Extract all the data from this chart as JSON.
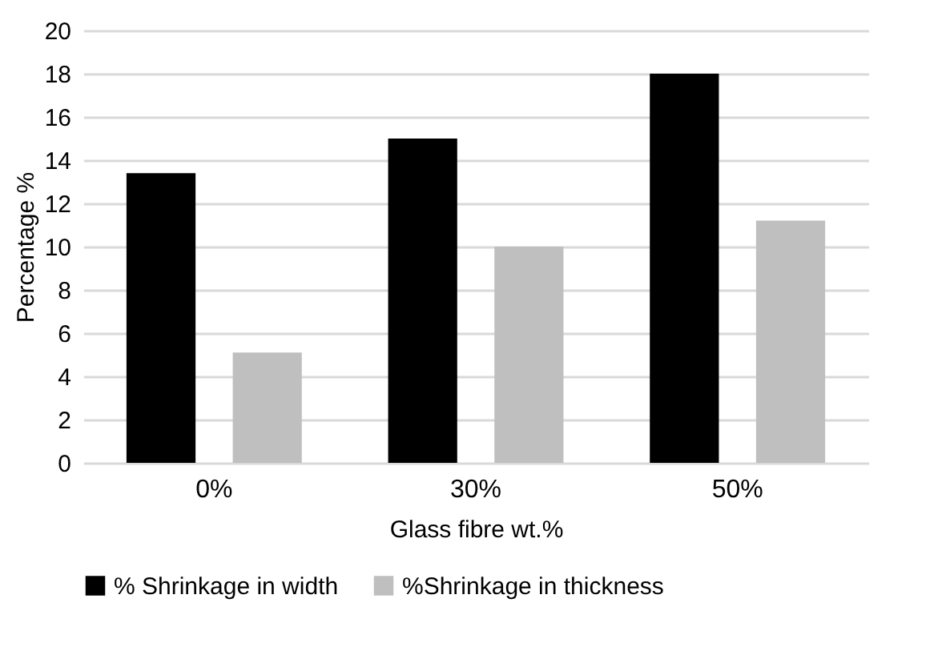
{
  "chart_data": {
    "type": "bar",
    "xlabel": "Glass fibre wt.%",
    "ylabel": "Percentage %",
    "categories": [
      "0%",
      "30%",
      "50%"
    ],
    "series": [
      {
        "name": "% Shrinkage in width",
        "color": "#000000",
        "values": [
          13.4,
          15.0,
          18.0
        ]
      },
      {
        "name": "%Shrinkage in thickness",
        "color": "#bfbfbf",
        "values": [
          5.1,
          10.0,
          11.2
        ]
      }
    ],
    "ylim": [
      0,
      20
    ],
    "yticks": [
      0,
      2,
      4,
      6,
      8,
      10,
      12,
      14,
      16,
      18,
      20
    ],
    "grid": "y",
    "legend": "bottom"
  }
}
